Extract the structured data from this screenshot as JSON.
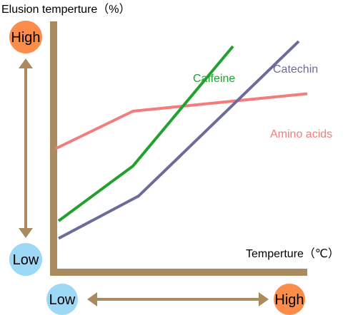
{
  "chart_data": {
    "type": "line",
    "ylabel": "Elusion temperture（%）",
    "xlabel": "Temperture（℃）",
    "y_axis": {
      "high": {
        "label": "High",
        "color": "#fb8c4a"
      },
      "low": {
        "label": "Low",
        "color": "#9ed8f7"
      }
    },
    "x_axis": {
      "low": {
        "label": "Low",
        "color": "#9ed8f7"
      },
      "high": {
        "label": "High",
        "color": "#fb8c4a"
      }
    },
    "axis_color": "#a98b5f",
    "arrow_color": "#a98b5f",
    "xlim": [
      0,
      100
    ],
    "ylim": [
      0,
      100
    ],
    "grid": false,
    "series": [
      {
        "name": "Caffeine",
        "color": "#22a12f",
        "x": [
          13,
          39,
          74
        ],
        "y": [
          20,
          42,
          90
        ]
      },
      {
        "name": "Catechin",
        "color": "#6c6c9a",
        "x": [
          13,
          41,
          97
        ],
        "y": [
          13,
          30,
          92
        ]
      },
      {
        "name": "Amino acids",
        "color": "#f37d7d",
        "x": [
          12,
          39,
          100
        ],
        "y": [
          49,
          64,
          71
        ]
      }
    ]
  }
}
